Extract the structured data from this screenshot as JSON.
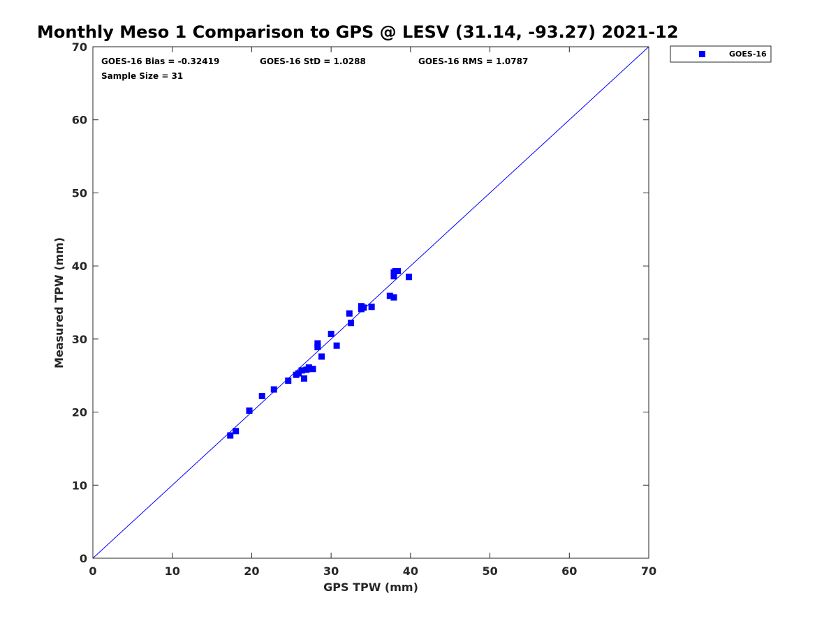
{
  "chart_data": {
    "type": "scatter",
    "title": "Monthly Meso 1 Comparison to GPS @ LESV (31.14, -93.27) 2021-12",
    "xlabel": "GPS TPW (mm)",
    "ylabel": "Measured TPW (mm)",
    "xlim": [
      0,
      70
    ],
    "ylim": [
      0,
      70
    ],
    "xticks": [
      0,
      10,
      20,
      30,
      40,
      50,
      60,
      70
    ],
    "yticks": [
      0,
      10,
      20,
      30,
      40,
      50,
      60,
      70
    ],
    "grid": false,
    "legend_position": "outside-top-right",
    "annotations": {
      "bias": "GOES-16 Bias = -0.32419",
      "std": "GOES-16 StD = 1.0288",
      "rms": "GOES-16 RMS = 1.0787",
      "sample": "Sample Size = 31"
    },
    "reference_line": {
      "x": [
        0,
        70
      ],
      "y": [
        0,
        70
      ],
      "color": "#0000ff"
    },
    "series": [
      {
        "name": "GOES-16",
        "color": "#0000ff",
        "marker": "square",
        "points": [
          [
            17.3,
            16.8
          ],
          [
            18.0,
            17.4
          ],
          [
            19.7,
            20.2
          ],
          [
            21.3,
            22.2
          ],
          [
            22.8,
            23.1
          ],
          [
            24.6,
            24.3
          ],
          [
            25.6,
            25.1
          ],
          [
            25.9,
            25.3
          ],
          [
            26.3,
            25.7
          ],
          [
            26.6,
            24.6
          ],
          [
            26.9,
            25.8
          ],
          [
            27.2,
            26.1
          ],
          [
            27.7,
            25.9
          ],
          [
            28.3,
            28.9
          ],
          [
            28.3,
            29.4
          ],
          [
            28.8,
            27.6
          ],
          [
            30.0,
            30.7
          ],
          [
            30.7,
            29.1
          ],
          [
            32.3,
            33.5
          ],
          [
            32.5,
            32.2
          ],
          [
            33.8,
            34.5
          ],
          [
            33.8,
            34.1
          ],
          [
            34.1,
            34.3
          ],
          [
            35.1,
            34.4
          ],
          [
            37.4,
            35.9
          ],
          [
            37.9,
            35.7
          ],
          [
            37.9,
            39.1
          ],
          [
            37.9,
            38.6
          ],
          [
            38.1,
            39.3
          ],
          [
            38.4,
            39.3
          ],
          [
            39.8,
            38.5
          ]
        ]
      }
    ]
  }
}
